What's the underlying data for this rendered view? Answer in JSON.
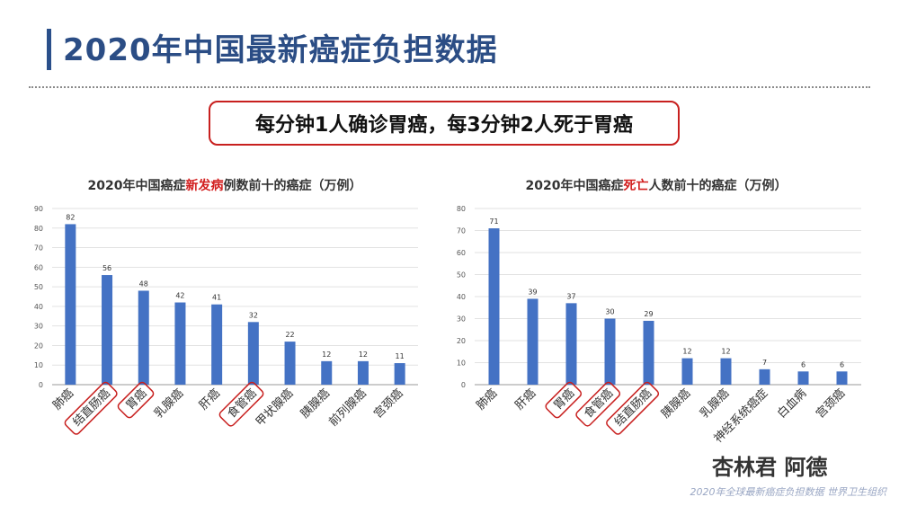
{
  "page": {
    "title": "2020年中国最新癌症负担数据",
    "highlight": "每分钟1人确诊胃癌，每3分钟2人死于胃癌",
    "footer": "2020年全球最新癌症负担数据  世界卫生组织",
    "watermark": "杏林君 阿德"
  },
  "colors": {
    "bar": "#4472c4",
    "highlight_red": "#c8201f",
    "title_blue": "#2b4d85"
  },
  "chart_data": [
    {
      "type": "bar",
      "title_parts": [
        "2020年中国癌症",
        "新发病",
        "例数前十的癌症（万例）"
      ],
      "categories": [
        "肺癌",
        "结直肠癌",
        "胃癌",
        "乳腺癌",
        "肝癌",
        "食管癌",
        "甲状腺癌",
        "胰腺癌",
        "前列腺癌",
        "宫颈癌"
      ],
      "values": [
        82,
        56,
        48,
        42,
        41,
        32,
        22,
        12,
        12,
        11
      ],
      "circled": [
        1,
        2,
        5
      ],
      "ylim": [
        0,
        90
      ],
      "yticks": [
        0,
        10,
        20,
        30,
        40,
        50,
        60,
        70,
        80,
        90
      ],
      "grid": true
    },
    {
      "type": "bar",
      "title_parts": [
        "2020年中国癌症",
        "死亡",
        "人数前十的癌症（万例）"
      ],
      "categories": [
        "肺癌",
        "肝癌",
        "胃癌",
        "食管癌",
        "结直肠癌",
        "胰腺癌",
        "乳腺癌",
        "神经系统癌症",
        "白血病",
        "宫颈癌"
      ],
      "values": [
        71,
        39,
        37,
        30,
        29,
        12,
        12,
        7,
        6,
        6
      ],
      "circled": [
        2,
        3,
        4
      ],
      "ylim": [
        0,
        80
      ],
      "yticks": [
        0,
        10,
        20,
        30,
        40,
        50,
        60,
        70,
        80
      ],
      "grid": true
    }
  ]
}
